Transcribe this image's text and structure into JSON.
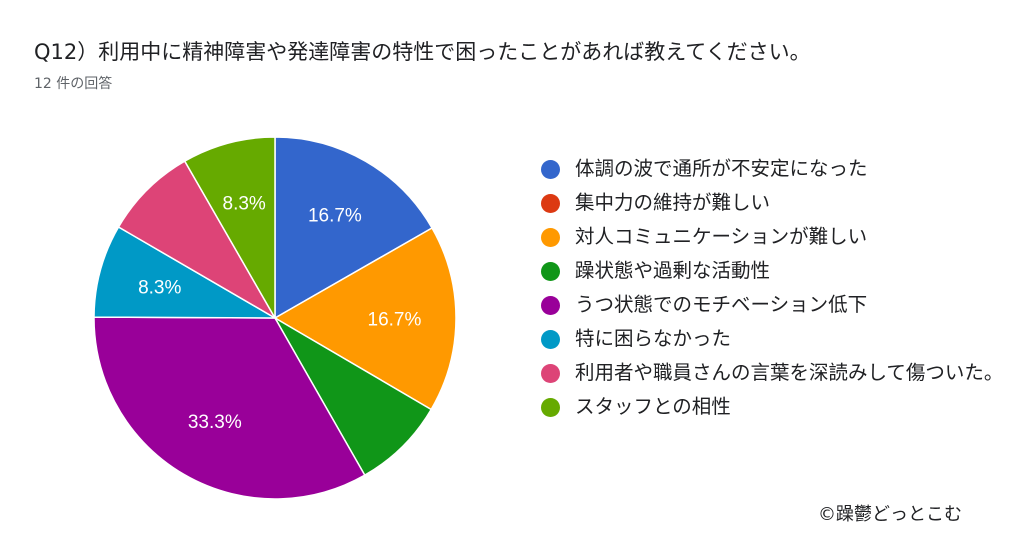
{
  "form": {
    "question": "Q12）利用中に精神障害や発達障害の特性で困ったことがあれば教えてください。",
    "response_count": "12 件の回答"
  },
  "chart_data": {
    "type": "pie",
    "slices": [
      {
        "label": "体調の波で通所が不安定になった",
        "value": 16.7,
        "display": "16.7%",
        "color": "#3366cc"
      },
      {
        "label": "集中力の維持が難しい",
        "value": 0,
        "display": "",
        "color": "#dc3912"
      },
      {
        "label": "対人コミュニケーションが難しい",
        "value": 16.7,
        "display": "16.7%",
        "color": "#ff9900"
      },
      {
        "label": "躁状態や過剰な活動性",
        "value": 8.3,
        "display": "",
        "color": "#109618"
      },
      {
        "label": "うつ状態でのモチベーション低下",
        "value": 33.3,
        "display": "33.3%",
        "color": "#990099"
      },
      {
        "label": "特に困らなかった",
        "value": 8.3,
        "display": "8.3%",
        "color": "#0099c6"
      },
      {
        "label": "利用者や職員さんの言葉を深読みして傷ついた。",
        "value": 8.3,
        "display": "",
        "color": "#dd4477"
      },
      {
        "label": "スタッフとの相性",
        "value": 8.3,
        "display": "8.3%",
        "color": "#66aa00"
      }
    ],
    "legend_position": "right"
  },
  "footer": {
    "copyright": "©躁鬱どっとこむ"
  }
}
